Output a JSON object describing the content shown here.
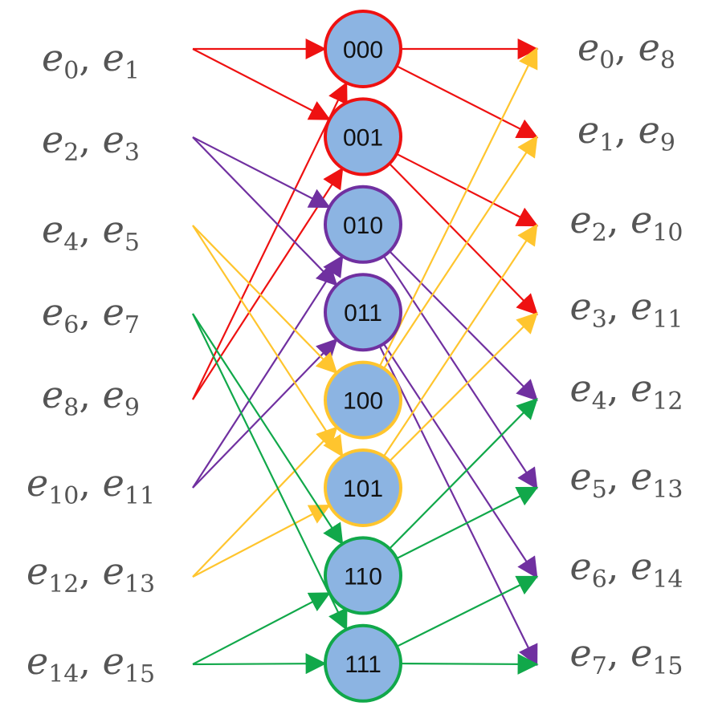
{
  "colors": {
    "red": "#ee1111",
    "purple": "#7030a0",
    "yellow": "#ffc52e",
    "green": "#11a84a",
    "node_fill": "#8cb4e2",
    "label": "#555555"
  },
  "nodes": [
    {
      "id": "000",
      "label": "000",
      "color": "red"
    },
    {
      "id": "001",
      "label": "001",
      "color": "red"
    },
    {
      "id": "010",
      "label": "010",
      "color": "purple"
    },
    {
      "id": "011",
      "label": "011",
      "color": "purple"
    },
    {
      "id": "100",
      "label": "100",
      "color": "yellow"
    },
    {
      "id": "101",
      "label": "101",
      "color": "yellow"
    },
    {
      "id": "110",
      "label": "110",
      "color": "green"
    },
    {
      "id": "111",
      "label": "111",
      "color": "green"
    }
  ],
  "left_labels": [
    {
      "a": "0",
      "b": "1"
    },
    {
      "a": "2",
      "b": "3"
    },
    {
      "a": "4",
      "b": "5"
    },
    {
      "a": "6",
      "b": "7"
    },
    {
      "a": "8",
      "b": "9"
    },
    {
      "a": "10",
      "b": "11"
    },
    {
      "a": "12",
      "b": "13"
    },
    {
      "a": "14",
      "b": "15"
    }
  ],
  "right_labels": [
    {
      "a": "0",
      "b": "8"
    },
    {
      "a": "1",
      "b": "9"
    },
    {
      "a": "2",
      "b": "10"
    },
    {
      "a": "3",
      "b": "11"
    },
    {
      "a": "4",
      "b": "12"
    },
    {
      "a": "5",
      "b": "13"
    },
    {
      "a": "6",
      "b": "14"
    },
    {
      "a": "7",
      "b": "15"
    }
  ],
  "left_edges": [
    {
      "from": 0,
      "to": 0,
      "color": "red"
    },
    {
      "from": 0,
      "to": 1,
      "color": "red"
    },
    {
      "from": 4,
      "to": 0,
      "color": "red"
    },
    {
      "from": 4,
      "to": 1,
      "color": "red"
    },
    {
      "from": 1,
      "to": 2,
      "color": "purple"
    },
    {
      "from": 1,
      "to": 3,
      "color": "purple"
    },
    {
      "from": 5,
      "to": 2,
      "color": "purple"
    },
    {
      "from": 5,
      "to": 3,
      "color": "purple"
    },
    {
      "from": 2,
      "to": 4,
      "color": "yellow"
    },
    {
      "from": 2,
      "to": 5,
      "color": "yellow"
    },
    {
      "from": 6,
      "to": 4,
      "color": "yellow"
    },
    {
      "from": 6,
      "to": 5,
      "color": "yellow"
    },
    {
      "from": 3,
      "to": 6,
      "color": "green"
    },
    {
      "from": 3,
      "to": 7,
      "color": "green"
    },
    {
      "from": 7,
      "to": 6,
      "color": "green"
    },
    {
      "from": 7,
      "to": 7,
      "color": "green"
    }
  ],
  "right_edges": [
    {
      "from": 0,
      "to": 0,
      "color": "red"
    },
    {
      "from": 0,
      "to": 1,
      "color": "red"
    },
    {
      "from": 1,
      "to": 2,
      "color": "red"
    },
    {
      "from": 1,
      "to": 3,
      "color": "red"
    },
    {
      "from": 2,
      "to": 4,
      "color": "purple"
    },
    {
      "from": 2,
      "to": 5,
      "color": "purple"
    },
    {
      "from": 3,
      "to": 6,
      "color": "purple"
    },
    {
      "from": 3,
      "to": 7,
      "color": "purple"
    },
    {
      "from": 4,
      "to": 0,
      "color": "yellow"
    },
    {
      "from": 4,
      "to": 1,
      "color": "yellow"
    },
    {
      "from": 5,
      "to": 2,
      "color": "yellow"
    },
    {
      "from": 5,
      "to": 3,
      "color": "yellow"
    },
    {
      "from": 6,
      "to": 4,
      "color": "green"
    },
    {
      "from": 6,
      "to": 5,
      "color": "green"
    },
    {
      "from": 7,
      "to": 6,
      "color": "green"
    },
    {
      "from": 7,
      "to": 7,
      "color": "green"
    }
  ]
}
